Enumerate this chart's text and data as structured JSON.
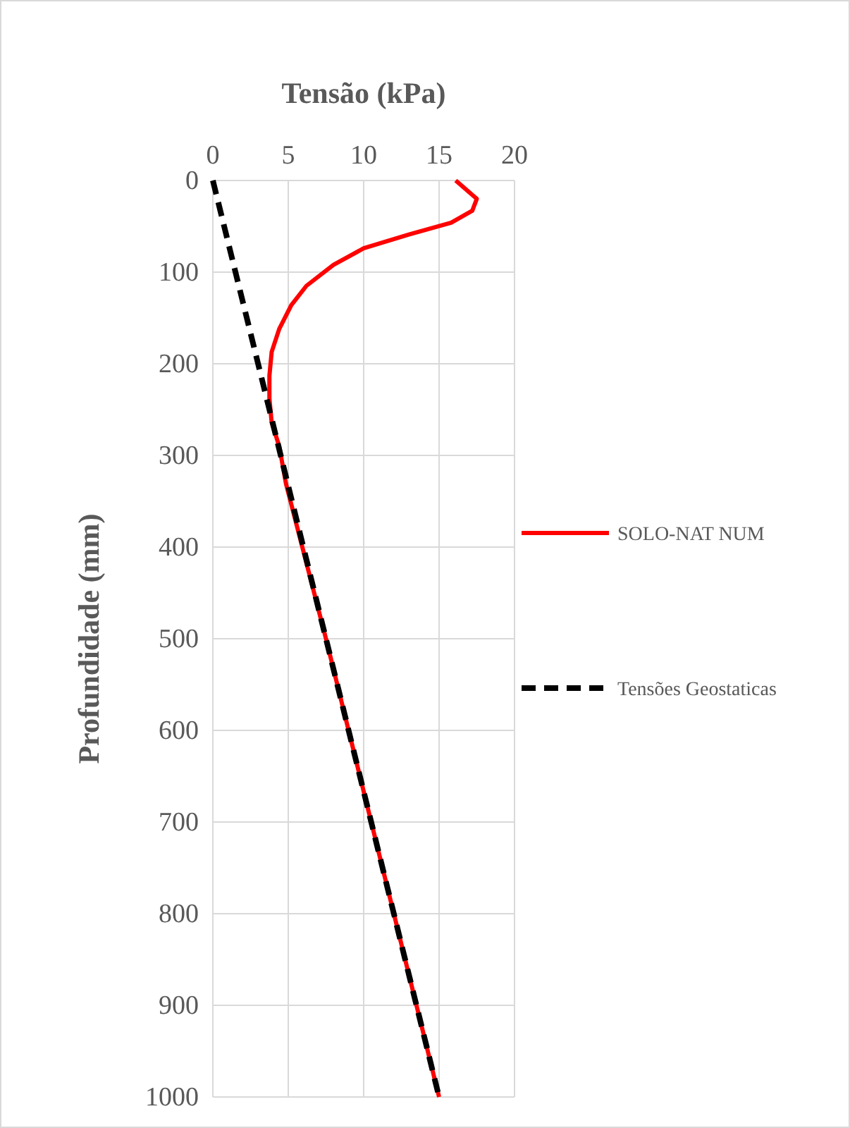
{
  "chart_data": {
    "type": "line",
    "xlabel": "Tensão (kPa)",
    "ylabel": "Profundidade (mm)",
    "xlim": [
      0,
      20
    ],
    "xticks": [
      0,
      5,
      10,
      15,
      20
    ],
    "ylim": [
      1000,
      0
    ],
    "yticks": [
      0,
      100,
      200,
      300,
      400,
      500,
      600,
      700,
      800,
      900,
      1000
    ],
    "grid": true,
    "legend": "right",
    "marker": "none",
    "series": [
      {
        "name": "SOLO-NAT NUM",
        "color": "#ff0000",
        "line_style": "solid",
        "x": [
          16.1,
          17.5,
          17.2,
          15.8,
          13.0,
          10.0,
          8.0,
          6.2,
          5.2,
          4.4,
          3.9,
          3.75,
          3.75,
          3.9,
          4.4,
          4.85,
          7.5,
          10.5,
          15.0
        ],
        "values": [
          0,
          20,
          33,
          46,
          59,
          74,
          92,
          115,
          136,
          162,
          187,
          213,
          238,
          264,
          290,
          331,
          500,
          700,
          1000
        ]
      },
      {
        "name": "Tensões Geostaticas",
        "color": "#000000",
        "line_style": "dashed",
        "x": [
          0,
          15.0
        ],
        "values": [
          0,
          1000
        ]
      }
    ]
  }
}
